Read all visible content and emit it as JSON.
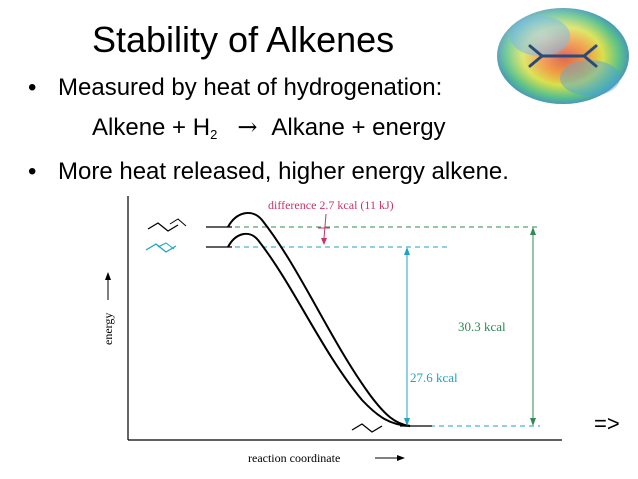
{
  "slide": {
    "title": "Stability of Alkenes",
    "bullets": [
      "Measured by heat of hydrogenation:",
      "More heat released, higher energy alkene."
    ],
    "equation": {
      "left": "Alkene + H",
      "subscript": "2",
      "arrow": "→",
      "right": "Alkane + energy"
    },
    "next_label": "=>"
  },
  "diagram": {
    "difference_label": "difference 2.7 kcal (11 kJ)",
    "value_green": "30.3 kcal",
    "value_blue": "27.6 kcal",
    "y_axis_label": "energy",
    "x_axis_label": "reaction coordinate",
    "colors": {
      "green": "#2e8b57",
      "blue": "#1fa3c4",
      "red": "#cc3366",
      "curve": "#000000",
      "axis": "#000000"
    }
  }
}
